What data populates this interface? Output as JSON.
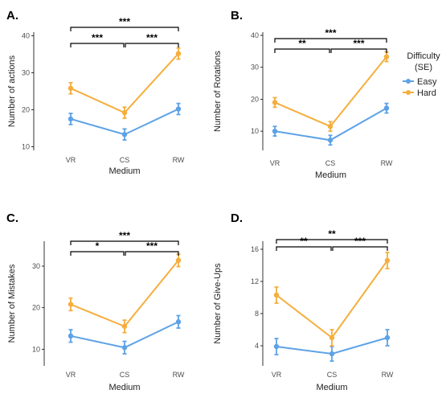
{
  "legend": {
    "title_line1": "Difficulty",
    "title_line2": "(SE)"
  },
  "colors": {
    "easy": "#5ea2e6",
    "hard": "#f5ae3d"
  },
  "chart_data": [
    {
      "type": "line",
      "panel": "A.",
      "categories": [
        "VR",
        "CS",
        "RW"
      ],
      "xlabel": "Medium",
      "ylabel": "Number of actions",
      "ylim": [
        9,
        41
      ],
      "yticks": [
        10,
        20,
        30,
        40
      ],
      "series": [
        {
          "name": "Easy",
          "values": [
            17.5,
            13.3,
            20.2
          ],
          "se": [
            1.5,
            1.5,
            1.5
          ]
        },
        {
          "name": "Hard",
          "values": [
            25.8,
            19.2,
            35.2
          ],
          "se": [
            1.5,
            1.5,
            1.5
          ]
        }
      ],
      "significance": [
        {
          "from": 0,
          "to": 1,
          "label": "***"
        },
        {
          "from": 1,
          "to": 2,
          "label": "***"
        },
        {
          "from": 0,
          "to": 2,
          "label": "***"
        }
      ]
    },
    {
      "type": "line",
      "panel": "B.",
      "categories": [
        "VR",
        "CS",
        "RW"
      ],
      "xlabel": "Medium",
      "ylabel": "Number of Rotations",
      "ylim": [
        4,
        41
      ],
      "yticks": [
        10,
        20,
        30,
        40
      ],
      "series": [
        {
          "name": "Easy",
          "values": [
            10.0,
            7.2,
            17.2
          ],
          "se": [
            1.5,
            1.5,
            1.5
          ]
        },
        {
          "name": "Hard",
          "values": [
            19.0,
            11.5,
            33.3
          ],
          "se": [
            1.5,
            1.5,
            1.5
          ]
        }
      ],
      "significance": [
        {
          "from": 0,
          "to": 1,
          "label": "**"
        },
        {
          "from": 1,
          "to": 2,
          "label": "***"
        },
        {
          "from": 0,
          "to": 2,
          "label": "***"
        }
      ]
    },
    {
      "type": "line",
      "panel": "C.",
      "categories": [
        "VR",
        "CS",
        "RW"
      ],
      "xlabel": "Medium",
      "ylabel": "Number of Mistakes",
      "ylim": [
        6,
        36
      ],
      "yticks": [
        10,
        20,
        30
      ],
      "series": [
        {
          "name": "Easy",
          "values": [
            13.2,
            10.4,
            16.6
          ],
          "se": [
            1.5,
            1.5,
            1.5
          ]
        },
        {
          "name": "Hard",
          "values": [
            20.8,
            15.5,
            31.4
          ],
          "se": [
            1.5,
            1.5,
            1.5
          ]
        }
      ],
      "significance": [
        {
          "from": 0,
          "to": 1,
          "label": "*"
        },
        {
          "from": 1,
          "to": 2,
          "label": "***"
        },
        {
          "from": 0,
          "to": 2,
          "label": "***"
        }
      ]
    },
    {
      "type": "line",
      "panel": "D.",
      "categories": [
        "VR",
        "CS",
        "RW"
      ],
      "xlabel": "Medium",
      "ylabel": "Number of Give-Ups",
      "ylim": [
        1.5,
        17
      ],
      "yticks": [
        4,
        8,
        12,
        16
      ],
      "series": [
        {
          "name": "Easy",
          "values": [
            3.9,
            3.0,
            5.0
          ],
          "se": [
            1.0,
            0.9,
            1.0
          ]
        },
        {
          "name": "Hard",
          "values": [
            10.3,
            5.0,
            14.6
          ],
          "se": [
            1.0,
            1.0,
            1.0
          ]
        }
      ],
      "significance": [
        {
          "from": 0,
          "to": 1,
          "label": "**"
        },
        {
          "from": 1,
          "to": 2,
          "label": "***"
        },
        {
          "from": 0,
          "to": 2,
          "label": "**"
        }
      ]
    }
  ]
}
